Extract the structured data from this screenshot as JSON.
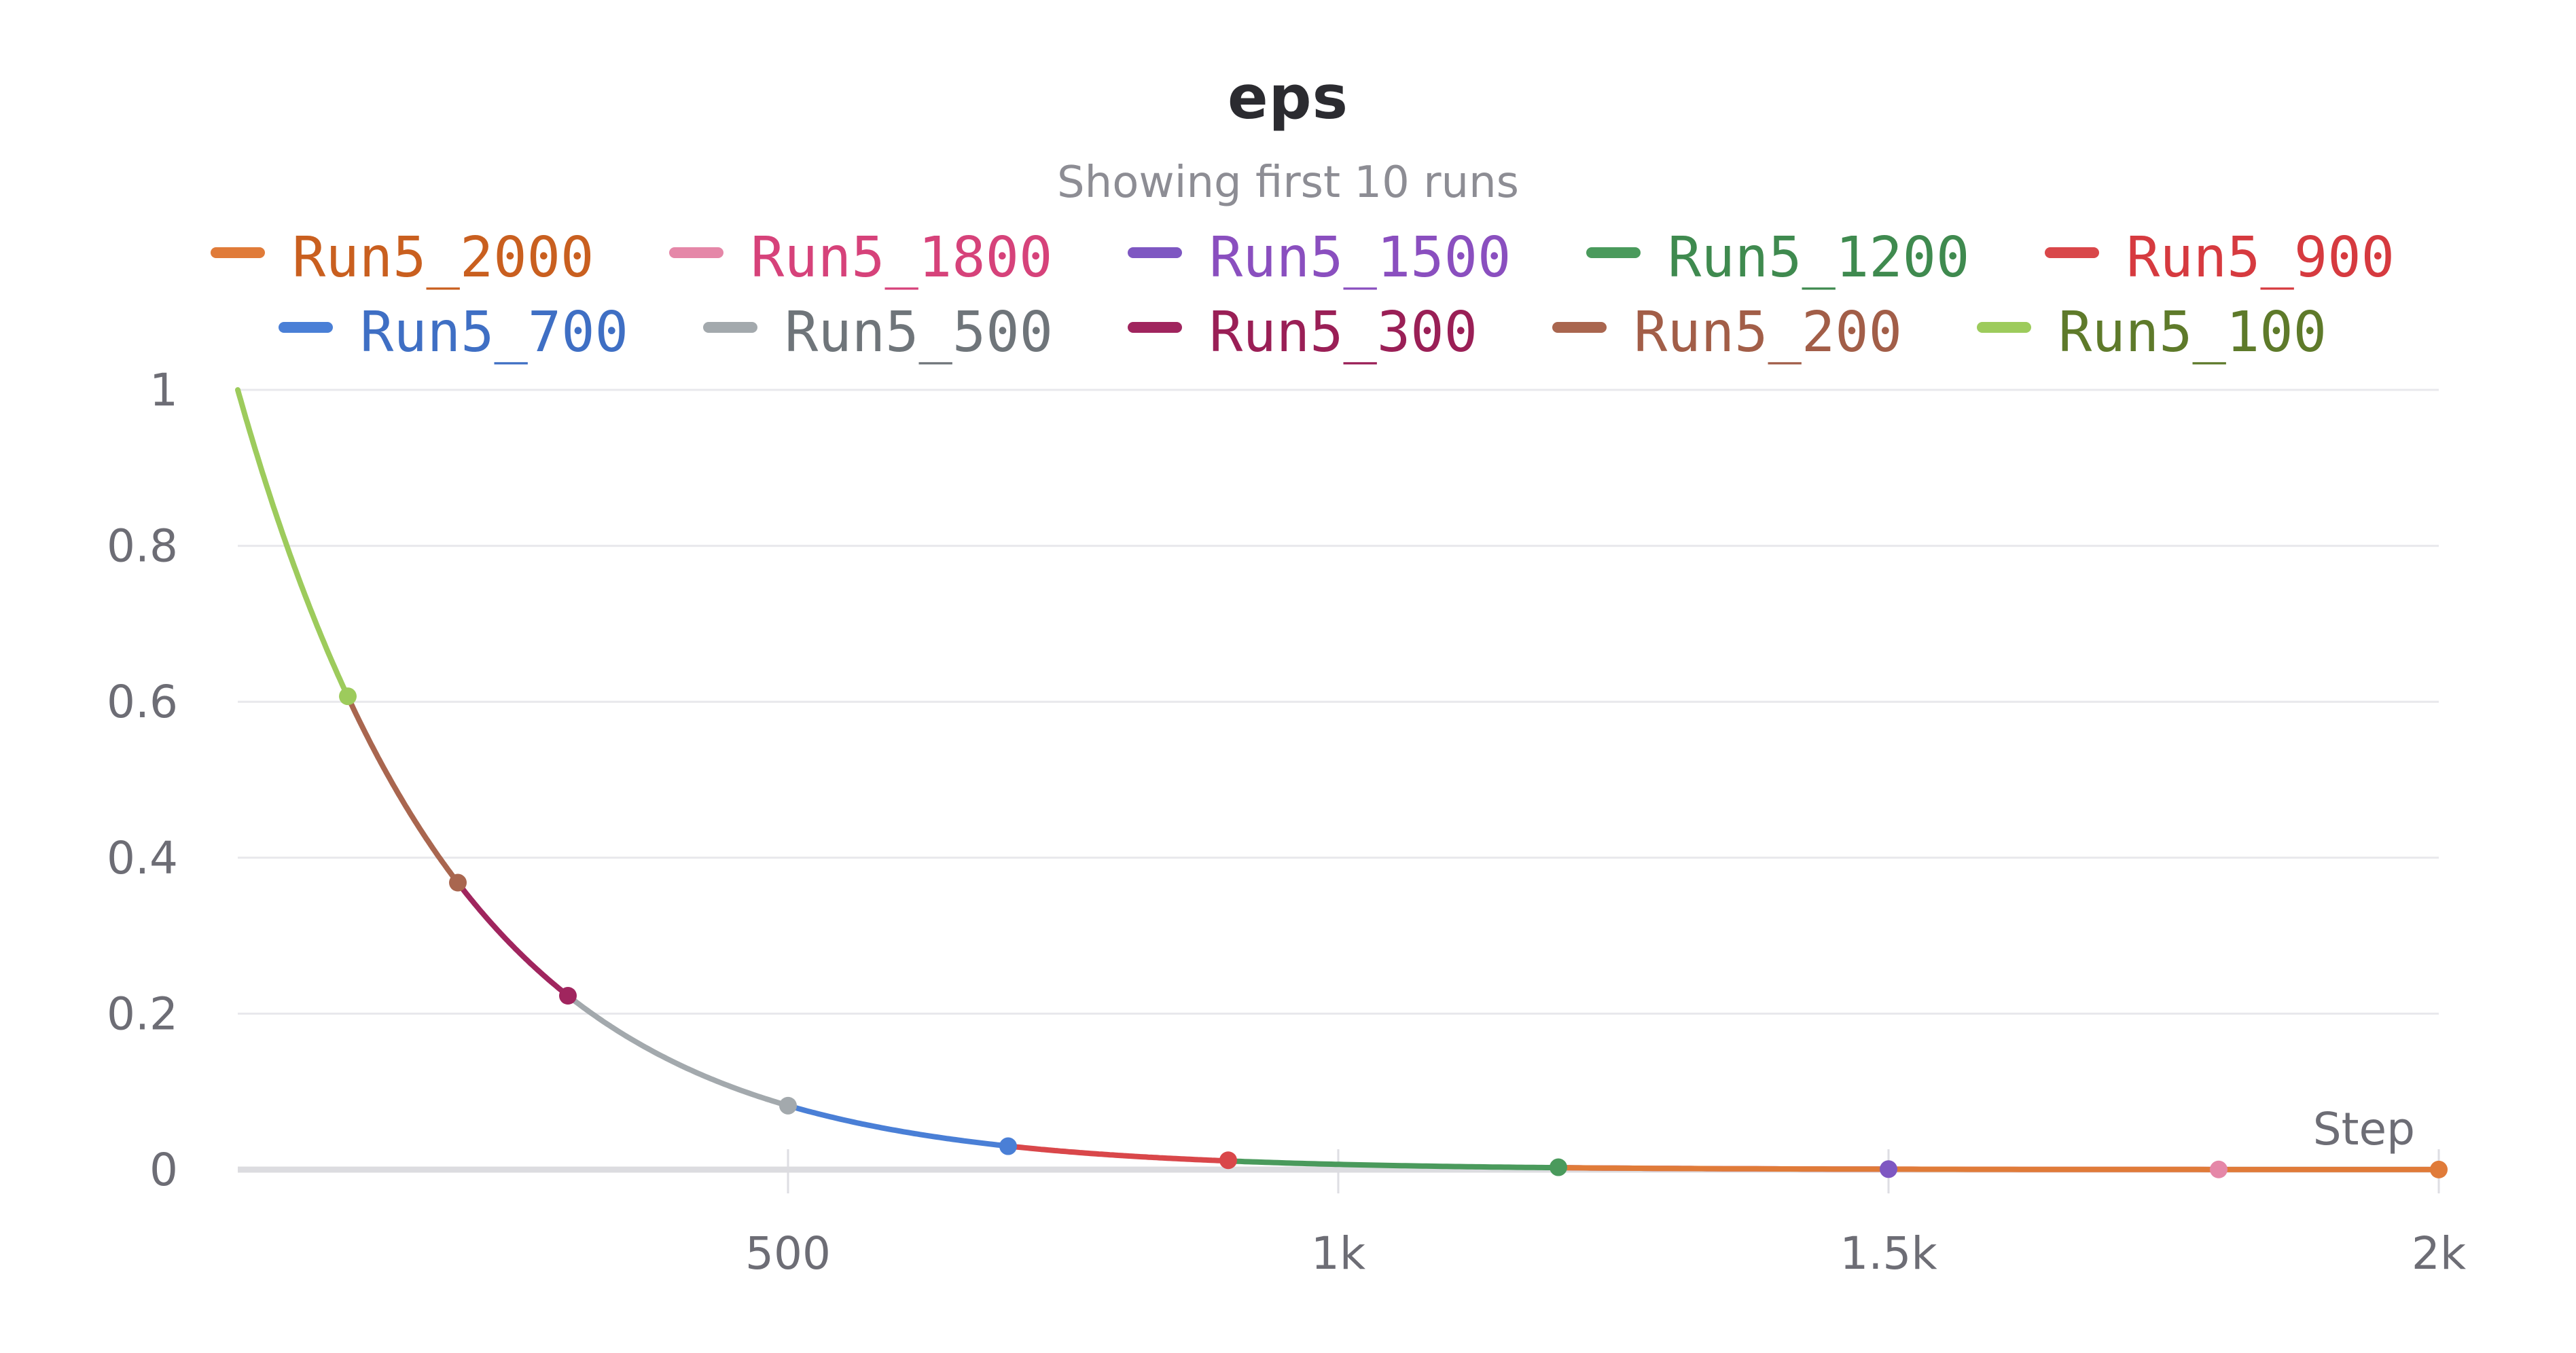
{
  "chart_data": {
    "type": "line",
    "title": "eps",
    "subtitle": "Showing first 10 runs",
    "xlabel": "Step",
    "ylabel": "",
    "xlim": [
      0,
      2000
    ],
    "ylim": [
      0,
      1
    ],
    "x_ticks": [
      {
        "value": 500,
        "label": "500"
      },
      {
        "value": 1000,
        "label": "1k"
      },
      {
        "value": 1500,
        "label": "1.5k"
      },
      {
        "value": 2000,
        "label": "2k"
      }
    ],
    "y_ticks": [
      {
        "value": 0,
        "label": "0"
      },
      {
        "value": 0.2,
        "label": "0.2"
      },
      {
        "value": 0.4,
        "label": "0.4"
      },
      {
        "value": 0.6,
        "label": "0.6"
      },
      {
        "value": 0.8,
        "label": "0.8"
      },
      {
        "value": 1,
        "label": "1"
      }
    ],
    "grid": true,
    "legend_position": "top",
    "series": [
      {
        "name": "Run5_2000",
        "color": "#e07b39",
        "text_color": "#c95f1f",
        "segment": [
          1200,
          2000
        ],
        "end": {
          "x": 2000,
          "y": 0.0001
        }
      },
      {
        "name": "Run5_1800",
        "color": "#e587a8",
        "text_color": "#d6427a",
        "segment": [
          1200,
          1800
        ],
        "end": {
          "x": 1800,
          "y": 0.0002
        }
      },
      {
        "name": "Run5_1500",
        "color": "#7e57c2",
        "text_color": "#8a4fbf",
        "segment": [
          1200,
          1500
        ],
        "end": {
          "x": 1500,
          "y": 0.0006
        }
      },
      {
        "name": "Run5_1200",
        "color": "#4a9a5c",
        "text_color": "#3f8a4f",
        "segment": [
          900,
          1200
        ],
        "end": {
          "x": 1200,
          "y": 0.003
        }
      },
      {
        "name": "Run5_900",
        "color": "#d9474a",
        "text_color": "#d63a3f",
        "segment": [
          700,
          900
        ],
        "end": {
          "x": 900,
          "y": 0.012
        }
      },
      {
        "name": "Run5_700",
        "color": "#4a7fd6",
        "text_color": "#3f6fc4",
        "segment": [
          500,
          700
        ],
        "end": {
          "x": 700,
          "y": 0.03
        }
      },
      {
        "name": "Run5_500",
        "color": "#a3a9ad",
        "text_color": "#6f757a",
        "segment": [
          300,
          500
        ],
        "end": {
          "x": 500,
          "y": 0.082
        }
      },
      {
        "name": "Run5_300",
        "color": "#a0255e",
        "text_color": "#9a1f56",
        "segment": [
          200,
          300
        ],
        "end": {
          "x": 300,
          "y": 0.223
        }
      },
      {
        "name": "Run5_200",
        "color": "#a9664f",
        "text_color": "#a25e48",
        "segment": [
          100,
          200
        ],
        "end": {
          "x": 200,
          "y": 0.368
        }
      },
      {
        "name": "Run5_100",
        "color": "#9dcb5c",
        "text_color": "#5e7a2a",
        "segment": [
          0,
          100
        ],
        "end": {
          "x": 100,
          "y": 0.607
        }
      }
    ]
  }
}
